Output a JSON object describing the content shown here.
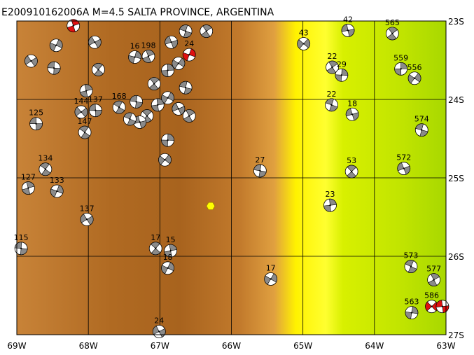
{
  "title": "E200910162006A  M=4.5  SALTA PROVINCE, ARGENTINA",
  "lon_range": [
    -69,
    -63
  ],
  "lat_range": [
    -23,
    -27
  ],
  "lon_ticks": [
    {
      "value": -69,
      "label": "69W"
    },
    {
      "value": -68,
      "label": "68W"
    },
    {
      "value": -67,
      "label": "67W"
    },
    {
      "value": -66,
      "label": "66W"
    },
    {
      "value": -65,
      "label": "65W"
    },
    {
      "value": -64,
      "label": "64W"
    },
    {
      "value": -63,
      "label": "63W"
    }
  ],
  "lat_ticks": [
    {
      "value": -23,
      "label": "23S"
    },
    {
      "value": -24,
      "label": "24S"
    },
    {
      "value": -25,
      "label": "25S"
    },
    {
      "value": -26,
      "label": "26S"
    },
    {
      "value": -27,
      "label": "27S"
    }
  ],
  "epicenter": {
    "lon": -66.29,
    "lat": -25.36
  },
  "events": [
    {
      "lon": -68.73,
      "lat": -24.31,
      "depth": 125,
      "color": "#8a8a8a"
    },
    {
      "lon": -68.6,
      "lat": -24.89,
      "depth": 134,
      "color": "#8a8a8a"
    },
    {
      "lon": -68.84,
      "lat": -25.13,
      "depth": 127,
      "color": "#8a8a8a"
    },
    {
      "lon": -68.44,
      "lat": -25.17,
      "depth": 133,
      "color": "#8a8a8a"
    },
    {
      "lon": -68.02,
      "lat": -25.53,
      "depth": 137,
      "color": "#8a8a8a"
    },
    {
      "lon": -68.94,
      "lat": -25.9,
      "depth": 115,
      "color": "#8a8a8a"
    },
    {
      "lon": -67.06,
      "lat": -25.9,
      "depth": 17,
      "color": "#8a8a8a"
    },
    {
      "lon": -66.85,
      "lat": -25.93,
      "depth": 15,
      "color": "#8a8a8a"
    },
    {
      "lon": -66.89,
      "lat": -26.15,
      "depth": 18,
      "color": "#8a8a8a"
    },
    {
      "lon": -67.01,
      "lat": -26.96,
      "depth": 24,
      "color": "#8a8a8a"
    },
    {
      "lon": -65.6,
      "lat": -24.91,
      "depth": 27,
      "color": "#8a8a8a"
    },
    {
      "lon": -64.32,
      "lat": -24.92,
      "depth": 53,
      "color": "#8a8a8a"
    },
    {
      "lon": -64.62,
      "lat": -25.35,
      "depth": 23,
      "color": "#8a8a8a"
    },
    {
      "lon": -65.45,
      "lat": -26.29,
      "depth": 17,
      "color": "#8a8a8a"
    },
    {
      "lon": -63.59,
      "lat": -24.88,
      "depth": 572,
      "color": "#8a8a8a"
    },
    {
      "lon": -63.34,
      "lat": -24.39,
      "depth": 574,
      "color": "#8a8a8a"
    },
    {
      "lon": -63.75,
      "lat": -23.16,
      "depth": 565,
      "color": "#8a8a8a"
    },
    {
      "lon": -63.63,
      "lat": -23.61,
      "depth": 559,
      "color": "#8a8a8a"
    },
    {
      "lon": -63.44,
      "lat": -23.73,
      "depth": 556,
      "color": "#8a8a8a"
    },
    {
      "lon": -64.31,
      "lat": -24.19,
      "depth": 18,
      "color": "#8a8a8a"
    },
    {
      "lon": -64.6,
      "lat": -24.07,
      "depth": 22,
      "color": "#8a8a8a"
    },
    {
      "lon": -64.59,
      "lat": -23.59,
      "depth": 22,
      "color": "#8a8a8a"
    },
    {
      "lon": -64.46,
      "lat": -23.69,
      "depth": 29,
      "color": "#8a8a8a"
    },
    {
      "lon": -64.99,
      "lat": -23.29,
      "depth": 43,
      "color": "#8a8a8a"
    },
    {
      "lon": -64.37,
      "lat": -23.12,
      "depth": 42,
      "color": "#8a8a8a"
    },
    {
      "lon": -63.49,
      "lat": -26.13,
      "depth": 573,
      "color": "#8a8a8a"
    },
    {
      "lon": -63.17,
      "lat": -26.3,
      "depth": 577,
      "color": "#8a8a8a"
    },
    {
      "lon": -63.48,
      "lat": -26.72,
      "depth": 563,
      "color": "#8a8a8a"
    },
    {
      "lon": -63.2,
      "lat": -26.64,
      "depth": 586,
      "color": "#e01010"
    },
    {
      "lon": -63.05,
      "lat": -26.64,
      "color": "#e01010"
    },
    {
      "lon": -67.57,
      "lat": -24.1,
      "depth": 168,
      "color": "#8a8a8a"
    },
    {
      "lon": -67.16,
      "lat": -23.45,
      "depth": 198,
      "color": "#8a8a8a"
    },
    {
      "lon": -67.35,
      "lat": -23.46,
      "depth": 16,
      "color": "#8a8a8a"
    },
    {
      "lon": -68.1,
      "lat": -24.16,
      "depth": 144,
      "color": "#8a8a8a"
    },
    {
      "lon": -67.9,
      "lat": -24.14,
      "depth": 137,
      "color": "#8a8a8a"
    },
    {
      "lon": -68.05,
      "lat": -24.42,
      "depth": 147,
      "color": "#8a8a8a"
    },
    {
      "lon": -68.21,
      "lat": -23.06,
      "color": "#e01010"
    },
    {
      "lon": -66.59,
      "lat": -23.43,
      "depth": 24,
      "color": "#e01010"
    },
    {
      "lon": -68.8,
      "lat": -23.51,
      "color": "#8a8a8a"
    },
    {
      "lon": -68.48,
      "lat": -23.6,
      "color": "#8a8a8a"
    },
    {
      "lon": -67.86,
      "lat": -23.62,
      "color": "#8a8a8a"
    },
    {
      "lon": -68.03,
      "lat": -23.89,
      "color": "#8a8a8a"
    },
    {
      "lon": -68.45,
      "lat": -23.31,
      "color": "#8a8a8a"
    },
    {
      "lon": -67.91,
      "lat": -23.27,
      "color": "#8a8a8a"
    },
    {
      "lon": -67.33,
      "lat": -24.03,
      "color": "#8a8a8a"
    },
    {
      "lon": -67.18,
      "lat": -24.21,
      "color": "#8a8a8a"
    },
    {
      "lon": -67.03,
      "lat": -24.07,
      "color": "#8a8a8a"
    },
    {
      "lon": -66.89,
      "lat": -23.98,
      "color": "#8a8a8a"
    },
    {
      "lon": -66.74,
      "lat": -24.12,
      "color": "#8a8a8a"
    },
    {
      "lon": -66.64,
      "lat": -23.85,
      "color": "#8a8a8a"
    },
    {
      "lon": -67.08,
      "lat": -23.8,
      "color": "#8a8a8a"
    },
    {
      "lon": -66.89,
      "lat": -23.63,
      "color": "#8a8a8a"
    },
    {
      "lon": -66.74,
      "lat": -23.54,
      "color": "#8a8a8a"
    },
    {
      "lon": -66.84,
      "lat": -23.27,
      "color": "#8a8a8a"
    },
    {
      "lon": -66.64,
      "lat": -23.13,
      "color": "#8a8a8a"
    },
    {
      "lon": -66.35,
      "lat": -23.13,
      "color": "#8a8a8a"
    },
    {
      "lon": -66.89,
      "lat": -24.52,
      "color": "#8a8a8a"
    },
    {
      "lon": -66.93,
      "lat": -24.77,
      "color": "#8a8a8a"
    },
    {
      "lon": -67.28,
      "lat": -24.29,
      "color": "#8a8a8a"
    },
    {
      "lon": -67.42,
      "lat": -24.25,
      "color": "#8a8a8a"
    },
    {
      "lon": -66.59,
      "lat": -24.21,
      "color": "#8a8a8a"
    }
  ]
}
